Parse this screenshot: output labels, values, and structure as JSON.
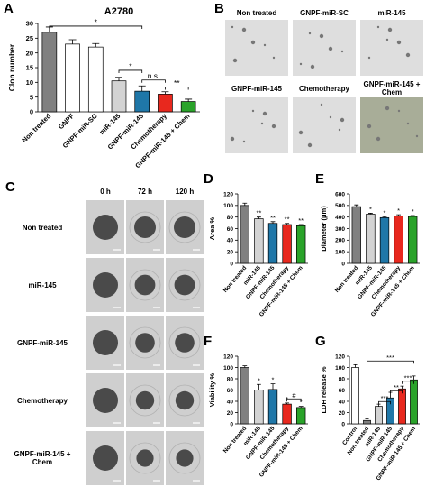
{
  "chart_data": [
    {
      "type": "bar",
      "panel": "A",
      "title": "A2780",
      "ylabel": "Clon number",
      "categories": [
        "Non treated",
        "GNPF",
        "GNPF-miR-SC",
        "miR-145",
        "GNPF-miR-145",
        "Chemotherapy",
        "GNPF-miR-145 + Chem"
      ],
      "values": [
        27,
        23,
        22,
        10.5,
        7,
        6,
        3.5
      ],
      "errors": [
        1.8,
        1.5,
        1.2,
        1.2,
        1.8,
        0.8,
        0.8
      ],
      "colors": [
        "#808080",
        "#ffffff",
        "#ffffff",
        "#d3d3d3",
        "#1f77a8",
        "#e8281e",
        "#2aa32a"
      ],
      "ylim": [
        0,
        30
      ],
      "yticks": [
        0,
        5,
        10,
        15,
        20,
        25,
        30
      ],
      "brackets": [
        {
          "text": "*"
        },
        {
          "text": "*"
        },
        {
          "text": "n.s."
        },
        {
          "text": "**"
        }
      ]
    },
    {
      "type": "bar",
      "panel": "D",
      "ylabel": "Area %",
      "categories": [
        "Non treated",
        "miR-145",
        "GNPF-miR-145",
        "Chemotherapy",
        "GNPF-miR-145 + Chem"
      ],
      "values": [
        100,
        77,
        69,
        67,
        65
      ],
      "errors": [
        4,
        3,
        3,
        2,
        2
      ],
      "colors": [
        "#808080",
        "#d3d3d3",
        "#1f77a8",
        "#e8281e",
        "#2aa32a"
      ],
      "ylim": [
        0,
        120
      ],
      "yticks": [
        0,
        20,
        40,
        60,
        80,
        100,
        120
      ],
      "bar_labels": [
        null,
        "**",
        "**",
        "**",
        "**"
      ]
    },
    {
      "type": "bar",
      "panel": "E",
      "ylabel": "Diameter (μm)",
      "categories": [
        "Non treated",
        "miR-145",
        "GNPF-miR-145",
        "Chemotherapy",
        "GNPF-miR-145 + Chem"
      ],
      "values": [
        490,
        425,
        395,
        410,
        405
      ],
      "errors": [
        15,
        8,
        8,
        10,
        8
      ],
      "colors": [
        "#808080",
        "#d3d3d3",
        "#1f77a8",
        "#e8281e",
        "#2aa32a"
      ],
      "ylim": [
        0,
        600
      ],
      "yticks": [
        0,
        100,
        200,
        300,
        400,
        500,
        600
      ],
      "bar_labels": [
        null,
        "*",
        "*",
        "*",
        "*"
      ]
    },
    {
      "type": "bar",
      "panel": "F",
      "ylabel": "Viability %",
      "categories": [
        "Non treated",
        "miR-145",
        "GNPF-miR-145",
        "Chemotherapy",
        "GNPF-miR-145 + Chem"
      ],
      "values": [
        100,
        60,
        61,
        35,
        29
      ],
      "errors": [
        3,
        10,
        10,
        2,
        2
      ],
      "colors": [
        "#808080",
        "#d3d3d3",
        "#1f77a8",
        "#e8281e",
        "#2aa32a"
      ],
      "ylim": [
        0,
        120
      ],
      "yticks": [
        0,
        20,
        40,
        60,
        80,
        100,
        120
      ],
      "bar_labels": [
        null,
        "*",
        "*",
        "*",
        "*"
      ],
      "brackets": [
        {
          "text": "#"
        }
      ]
    },
    {
      "type": "bar",
      "panel": "G",
      "ylabel": "LDH release %",
      "categories": [
        "Control",
        "Non treated",
        "miR-145",
        "GNPF-miR-145",
        "Chemotherapy",
        "GNPF-miR-145 + Chem"
      ],
      "values": [
        100,
        6,
        31,
        46,
        62,
        78
      ],
      "errors": [
        5,
        3,
        4,
        10,
        5,
        7
      ],
      "colors": [
        "#ffffff",
        "#808080",
        "#d3d3d3",
        "#1f77a8",
        "#e8281e",
        "#2aa32a"
      ],
      "ylim": [
        0,
        120
      ],
      "yticks": [
        0,
        20,
        40,
        60,
        80,
        100,
        120
      ],
      "brackets": [
        {
          "text": "***"
        },
        {
          "text": "***"
        },
        {
          "text": "**"
        },
        {
          "text": "***"
        }
      ]
    }
  ],
  "colony_images": {
    "panel": "B",
    "labels": [
      "Non treated",
      "GNPF-miR-SC",
      "miR-145",
      "GNPF-miR-145",
      "Chemotherapy",
      "GNPF-miR-145 + Chem"
    ]
  },
  "spheroid_images": {
    "panel": "C",
    "time_points": [
      "0 h",
      "72 h",
      "120 h"
    ],
    "rows": [
      "Non treated",
      "miR-145",
      "GNPF-miR-145",
      "Chemotherapy",
      "GNPF-miR-145 + Chem"
    ]
  }
}
